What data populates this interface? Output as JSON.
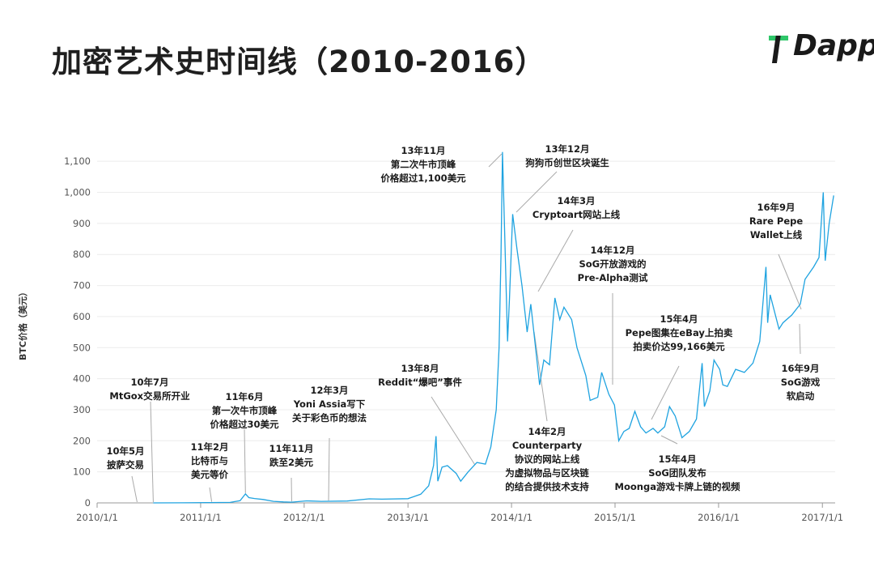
{
  "page": {
    "title": "加密艺术史时间线（2010-2016）",
    "logo_text": "Dapp",
    "accent": "#1fa3e0",
    "logo_green": "#2fc76a"
  },
  "chart_data": {
    "type": "line",
    "title": "",
    "xlabel": "",
    "ylabel": "BTC价格（美元）",
    "ylim": [
      0,
      1150
    ],
    "yticks": [
      0,
      100,
      200,
      300,
      400,
      500,
      600,
      700,
      800,
      900,
      1000,
      1100
    ],
    "ytick_labels": [
      "0",
      "100",
      "200",
      "300",
      "400",
      "500",
      "600",
      "700",
      "800",
      "900",
      "1,000",
      "1,100"
    ],
    "xticks": [
      "2010/1/1",
      "2011/1/1",
      "2012/1/1",
      "2013/1/1",
      "2014/1/1",
      "2015/1/1",
      "2016/1/1",
      "2017/1/1"
    ],
    "xlim": [
      "2010/1/1",
      "2017/2/15"
    ],
    "grid": "horizontal",
    "series": [
      {
        "color": "#1fa3e0",
        "points": [
          [
            "2010/7/18",
            0.1
          ],
          [
            "2010/11/1",
            0.3
          ],
          [
            "2011/2/1",
            1
          ],
          [
            "2011/4/15",
            1.5
          ],
          [
            "2011/5/20",
            7
          ],
          [
            "2011/6/8",
            29
          ],
          [
            "2011/6/20",
            17
          ],
          [
            "2011/7/10",
            14
          ],
          [
            "2011/8/10",
            11
          ],
          [
            "2011/9/15",
            5
          ],
          [
            "2011/10/20",
            3
          ],
          [
            "2011/11/18",
            2.3
          ],
          [
            "2012/1/10",
            6.5
          ],
          [
            "2012/3/1",
            5
          ],
          [
            "2012/6/1",
            6
          ],
          [
            "2012/8/17",
            13
          ],
          [
            "2012/10/1",
            12
          ],
          [
            "2013/1/1",
            13.5
          ],
          [
            "2013/2/15",
            28
          ],
          [
            "2013/3/15",
            55
          ],
          [
            "2013/4/1",
            120
          ],
          [
            "2013/4/10",
            215
          ],
          [
            "2013/4/16",
            70
          ],
          [
            "2013/5/1",
            115
          ],
          [
            "2013/5/20",
            120
          ],
          [
            "2013/6/20",
            95
          ],
          [
            "2013/7/6",
            70
          ],
          [
            "2013/8/1",
            100
          ],
          [
            "2013/9/1",
            130
          ],
          [
            "2013/10/1",
            125
          ],
          [
            "2013/10/20",
            180
          ],
          [
            "2013/11/8",
            300
          ],
          [
            "2013/11/18",
            500
          ],
          [
            "2013/11/25",
            800
          ],
          [
            "2013/11/30",
            1130
          ],
          [
            "2013/12/7",
            900
          ],
          [
            "2013/12/18",
            520
          ],
          [
            "2013/12/25",
            660
          ],
          [
            "2014/1/5",
            930
          ],
          [
            "2014/1/20",
            820
          ],
          [
            "2014/2/7",
            700
          ],
          [
            "2014/2/25",
            550
          ],
          [
            "2014/3/10",
            640
          ],
          [
            "2014/4/10",
            380
          ],
          [
            "2014/4/25",
            460
          ],
          [
            "2014/5/15",
            445
          ],
          [
            "2014/6/3",
            660
          ],
          [
            "2014/6/20",
            590
          ],
          [
            "2014/7/5",
            630
          ],
          [
            "2014/8/1",
            590
          ],
          [
            "2014/8/20",
            500
          ],
          [
            "2014/9/20",
            410
          ],
          [
            "2014/10/5",
            330
          ],
          [
            "2014/11/1",
            340
          ],
          [
            "2014/11/15",
            420
          ],
          [
            "2014/12/10",
            350
          ],
          [
            "2014/12/30",
            315
          ],
          [
            "2015/1/14",
            200
          ],
          [
            "2015/2/1",
            230
          ],
          [
            "2015/2/20",
            240
          ],
          [
            "2015/3/12",
            295
          ],
          [
            "2015/4/1",
            245
          ],
          [
            "2015/4/20",
            225
          ],
          [
            "2015/5/15",
            240
          ],
          [
            "2015/6/1",
            225
          ],
          [
            "2015/6/25",
            245
          ],
          [
            "2015/7/12",
            310
          ],
          [
            "2015/8/1",
            280
          ],
          [
            "2015/8/25",
            210
          ],
          [
            "2015/9/20",
            230
          ],
          [
            "2015/10/15",
            270
          ],
          [
            "2015/11/4",
            450
          ],
          [
            "2015/11/12",
            310
          ],
          [
            "2015/12/1",
            360
          ],
          [
            "2015/12/16",
            460
          ],
          [
            "2016/1/5",
            430
          ],
          [
            "2016/1/16",
            380
          ],
          [
            "2016/2/1",
            375
          ],
          [
            "2016/3/1",
            430
          ],
          [
            "2016/4/1",
            420
          ],
          [
            "2016/5/1",
            450
          ],
          [
            "2016/5/25",
            520
          ],
          [
            "2016/6/16",
            760
          ],
          [
            "2016/6/22",
            580
          ],
          [
            "2016/7/1",
            670
          ],
          [
            "2016/8/1",
            560
          ],
          [
            "2016/8/15",
            580
          ],
          [
            "2016/9/15",
            605
          ],
          [
            "2016/10/15",
            640
          ],
          [
            "2016/11/1",
            720
          ],
          [
            "2016/12/1",
            760
          ],
          [
            "2016/12/20",
            790
          ],
          [
            "2017/1/4",
            1000
          ],
          [
            "2017/1/11",
            780
          ],
          [
            "2017/1/25",
            900
          ],
          [
            "2017/2/10",
            990
          ]
        ]
      }
    ],
    "annotations": [
      {
        "lines": [
          "10年5月",
          "披萨交易"
        ],
        "date": "2010/5/22",
        "value": 0
      },
      {
        "lines": [
          "10年7月",
          "MtGox交易所开业"
        ],
        "date": "2010/7/18",
        "value": 0
      },
      {
        "lines": [
          "11年2月",
          "比特币与",
          "美元等价"
        ],
        "date": "2011/2/9",
        "value": 1
      },
      {
        "lines": [
          "11年6月",
          "第一次牛市顶峰",
          "价格超过30美元"
        ],
        "date": "2011/6/8",
        "value": 29
      },
      {
        "lines": [
          "11年11月",
          "跌至2美元"
        ],
        "date": "2011/11/18",
        "value": 2
      },
      {
        "lines": [
          "12年3月",
          "Yoni Assia写下",
          "关于彩色币的想法"
        ],
        "date": "2012/3/27",
        "value": 5
      },
      {
        "lines": [
          "13年8月",
          "Reddit“爆吧”事件"
        ],
        "date": "2013/8/25",
        "value": 120
      },
      {
        "lines": [
          "13年11月",
          "第二次牛市顶峰",
          "价格超过1,100美元"
        ],
        "date": "2013/11/30",
        "value": 1130
      },
      {
        "lines": [
          "13年12月",
          "狗狗币创世区块诞生"
        ],
        "date": "2013/12/6",
        "value": 900
      },
      {
        "lines": [
          "14年3月",
          "Cryptoart网站上线"
        ],
        "date": "2014/3/10",
        "value": 640
      },
      {
        "lines": [
          "14年2月",
          "Counterparty",
          "协议的网站上线",
          "为虚拟物品与区块链",
          "的结合提供技术支持"
        ],
        "date": "2014/2/1",
        "value": 700
      },
      {
        "lines": [
          "14年12月",
          "SoG开放游戏的",
          "Pre-Alpha测试"
        ],
        "date": "2014/12/20",
        "value": 320
      },
      {
        "lines": [
          "15年4月",
          "Pepe图集在eBay上拍卖",
          "拍卖价达99,166美元"
        ],
        "date": "2015/4/15",
        "value": 230
      },
      {
        "lines": [
          "15年4月",
          "SoG团队发布",
          "Moonga游戏卡牌上链的视频"
        ],
        "date": "2015/4/1",
        "value": 240
      },
      {
        "lines": [
          "16年9月",
          "Rare Pepe",
          "Wallet上线"
        ],
        "date": "2016/9/9",
        "value": 605
      },
      {
        "lines": [
          "16年9月",
          "SoG游戏",
          "软启动"
        ],
        "date": "2016/9/20",
        "value": 610
      }
    ]
  }
}
